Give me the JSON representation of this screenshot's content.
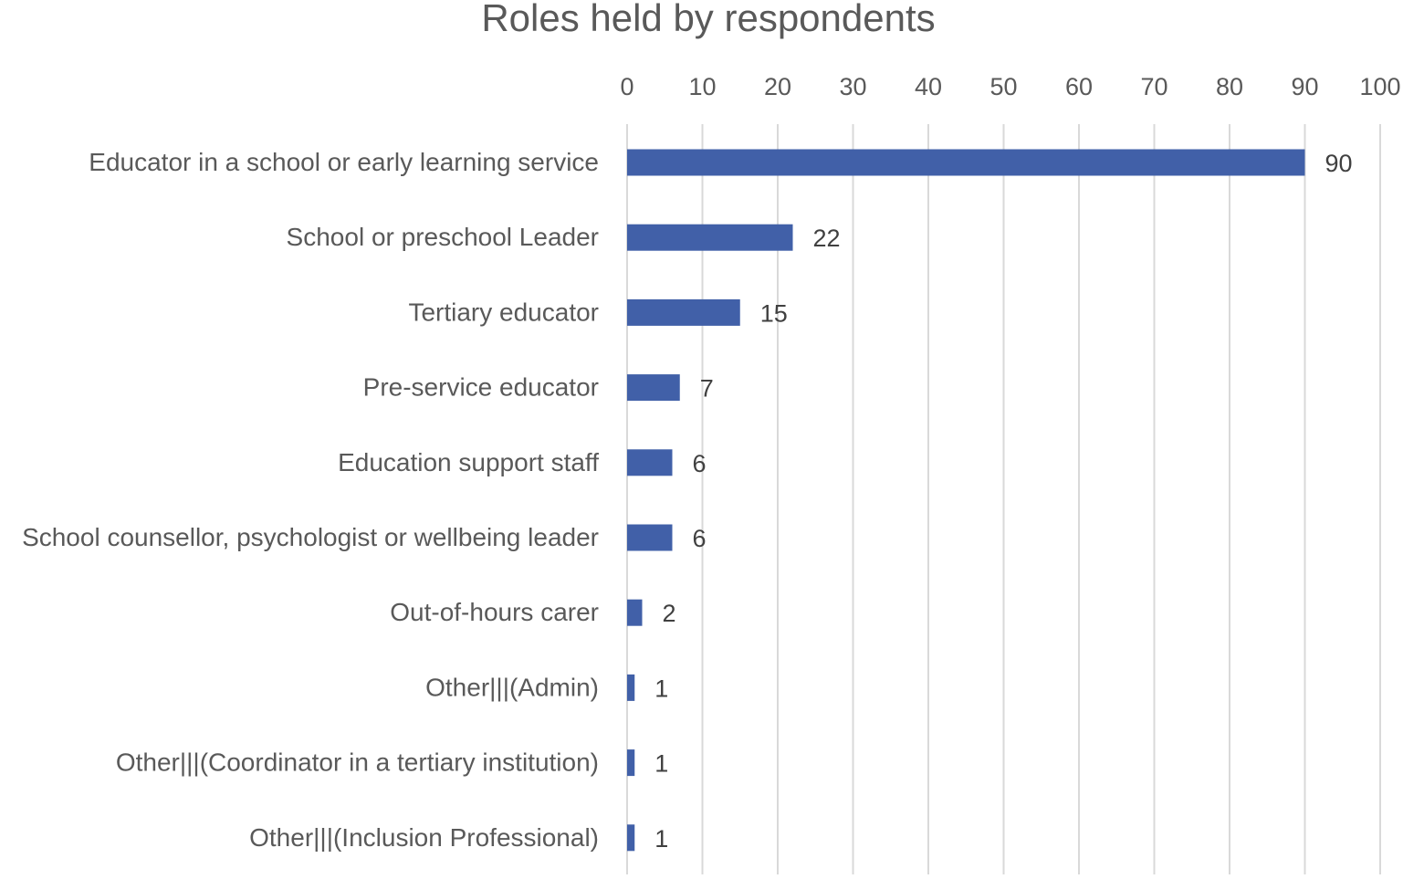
{
  "chart_data": {
    "type": "bar",
    "orientation": "horizontal",
    "title": "Roles held by respondents",
    "xlabel": "",
    "ylabel": "",
    "xlim": [
      0,
      100
    ],
    "x_ticks": [
      0,
      10,
      20,
      30,
      40,
      50,
      60,
      70,
      80,
      90,
      100
    ],
    "x_axis_position": "top",
    "grid": true,
    "legend": "none",
    "data_labels": true,
    "bar_color": "#4160A8",
    "categories": [
      "Educator in a school or early learning service",
      "School or preschool Leader",
      "Tertiary educator",
      "Pre-service educator",
      "Education support staff",
      "School counsellor, psychologist or wellbeing leader",
      "Out-of-hours carer",
      "Other|||(Admin)",
      "Other|||(Coordinator in a tertiary institution)",
      "Other|||(Inclusion Professional)"
    ],
    "values": [
      90,
      22,
      15,
      7,
      6,
      6,
      2,
      1,
      1,
      1
    ]
  }
}
